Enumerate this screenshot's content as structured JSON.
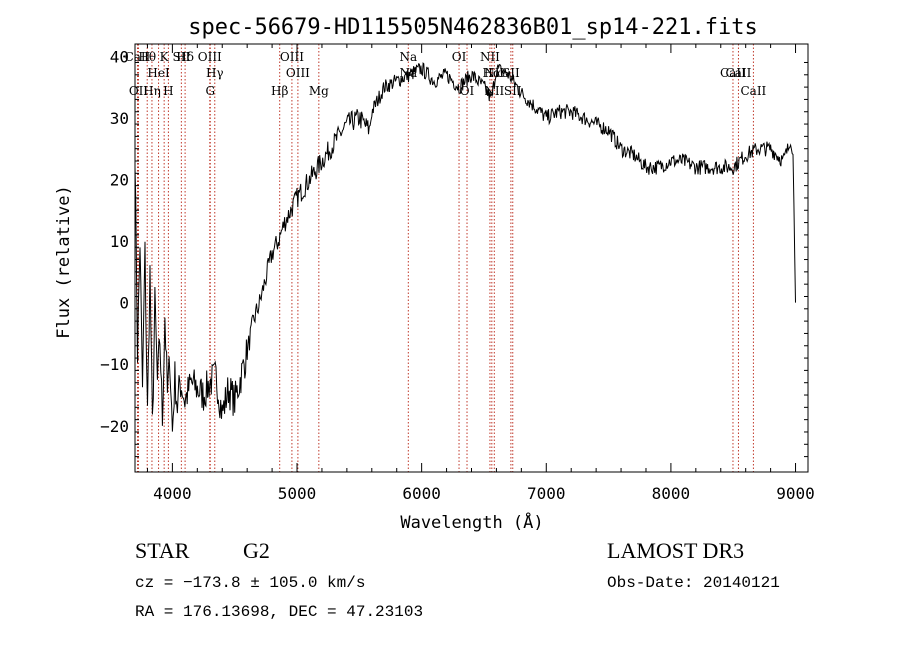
{
  "chart_data": {
    "type": "line",
    "title": "spec-56679-HD115505N462836B01_sp14-221.fits",
    "xlabel": "Wavelength (Å)",
    "ylabel": "Flux (relative)",
    "xlim": [
      3700,
      9100
    ],
    "ylim": [
      -27.5,
      42
    ],
    "x_ticks": [
      4000,
      5000,
      6000,
      7000,
      8000,
      9000
    ],
    "y_ticks": [
      -20,
      -10,
      0,
      10,
      20,
      30,
      40
    ],
    "grid": false,
    "series": [
      {
        "x": [
          3700,
          3720,
          3740,
          3760,
          3780,
          3800,
          3820,
          3840,
          3860,
          3880,
          3900,
          3920,
          3940,
          3960,
          3980,
          4000,
          4020,
          4040,
          4060,
          4080,
          4100,
          4150,
          4200,
          4250,
          4300,
          4350,
          4400,
          4450,
          4500,
          4550,
          4600,
          4650,
          4700,
          4750,
          4800,
          4850,
          4900,
          4950,
          5000,
          5100,
          5200,
          5300,
          5400,
          5500,
          5580,
          5600,
          5700,
          5800,
          5900,
          6000,
          6100,
          6200,
          6300,
          6400,
          6500,
          6560,
          6600,
          6700,
          6800,
          6900,
          7000,
          7100,
          7200,
          7300,
          7400,
          7500,
          7600,
          7700,
          7800,
          7900,
          8000,
          8100,
          8200,
          8300,
          8400,
          8500,
          8600,
          8700,
          8800,
          8900,
          8960,
          8980,
          9000
        ],
        "y": [
          25,
          -8,
          10,
          -14,
          8,
          -18,
          5,
          -20,
          0,
          -13,
          -6,
          -19,
          -2,
          -15,
          -9,
          -21,
          -12,
          -17,
          -13,
          -14,
          -16,
          -13,
          -14,
          -15,
          -13,
          -12,
          -18,
          -14,
          -16,
          -12,
          -8,
          -3,
          0,
          4,
          8,
          10,
          13,
          15,
          17,
          20,
          23,
          26,
          29,
          30,
          28,
          31,
          35,
          36,
          37,
          38,
          36,
          37,
          35,
          37,
          35,
          33,
          38,
          37,
          34,
          32,
          30,
          31,
          31,
          30,
          29,
          28,
          25,
          24,
          22,
          22,
          23,
          23,
          22,
          22,
          22,
          22,
          24,
          25,
          25,
          23,
          26,
          24,
          0
        ]
      }
    ],
    "lines": [
      {
        "name": "CaII",
        "x": 3720
      },
      {
        "name": "OII",
        "x": 3728
      },
      {
        "name": "Hθ",
        "x": 3798
      },
      {
        "name": "Hη",
        "x": 3836
      },
      {
        "name": "K",
        "x": 3934
      },
      {
        "name": "H",
        "x": 3968
      },
      {
        "name": "HeI",
        "x": 3889
      },
      {
        "name": "SII",
        "x": 4072
      },
      {
        "name": "Hδ",
        "x": 4102
      },
      {
        "name": "OIII",
        "x": 4300
      },
      {
        "name": "G",
        "x": 4304
      },
      {
        "name": "Hγ",
        "x": 4340
      },
      {
        "name": "Hβ",
        "x": 4861
      },
      {
        "name": "OIII",
        "x": 4959
      },
      {
        "name": "OIII",
        "x": 5007
      },
      {
        "name": "Mg",
        "x": 5175
      },
      {
        "name": "Na",
        "x": 5893
      },
      {
        "name": "OI",
        "x": 6300
      },
      {
        "name": "OI",
        "x": 6364
      },
      {
        "name": "NII",
        "x": 6548
      },
      {
        "name": "Hα",
        "x": 6563
      },
      {
        "name": "NII",
        "x": 6583
      },
      {
        "name": "SII",
        "x": 6716
      },
      {
        "name": "SII",
        "x": 6731
      },
      {
        "name": "CaII",
        "x": 8498
      },
      {
        "name": "CaII",
        "x": 8542
      },
      {
        "name": "CaII",
        "x": 8662
      }
    ],
    "line_label_rows": [
      [
        "Hθ",
        "K",
        "Hδ",
        "OIII",
        "OIII",
        "OI",
        "NII",
        "Na",
        "SII",
        "CaII"
      ],
      [
        "CaII",
        "HeI",
        "SII",
        "Hγ",
        "OIII",
        "Na",
        "NII",
        "Hα",
        "CaII"
      ],
      [
        "OII",
        "Hη",
        "H",
        "G",
        "Hβ",
        "Mg",
        "OI",
        "NII",
        "SII",
        "CaII"
      ]
    ]
  },
  "info": {
    "object_class": "STAR",
    "subclass": "G2",
    "survey": "LAMOST DR3",
    "redshift": "cz = −173.8 ± 105.0 km/s",
    "obs_date": "Obs-Date: 20140121",
    "coords": "RA = 176.13698, DEC =  47.23103"
  }
}
